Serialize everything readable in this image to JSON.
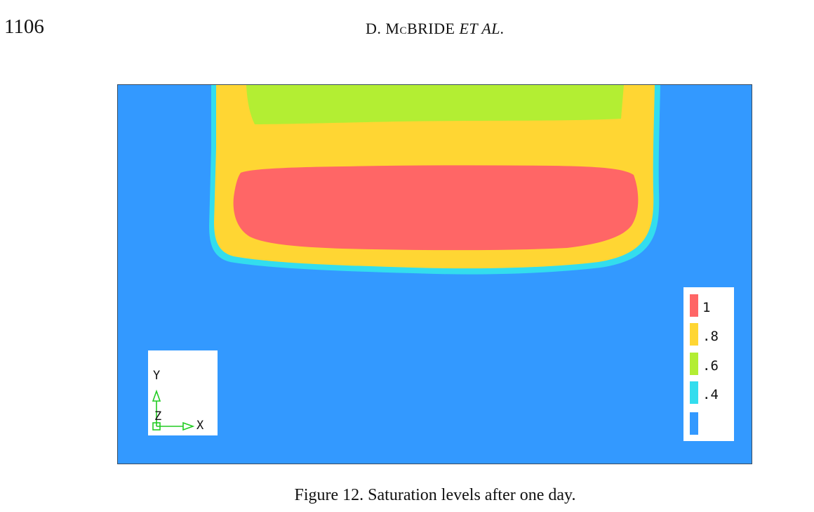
{
  "header": {
    "page_number": "1106",
    "author_prefix": "D. M",
    "author_smallcap": "C",
    "author_name": "BRIDE",
    "author_suffix": "ET AL."
  },
  "figure": {
    "colors": {
      "background_region": "#3399ff",
      "level_04": "#33ddee",
      "level_08": "#ffd633",
      "level_06": "#b3ee33",
      "level_1": "#ff6666"
    },
    "axis_triad": {
      "y_label": "Y",
      "z_label": "Z",
      "x_label": "X",
      "arrow_color": "#22cc22"
    },
    "legend": {
      "items": [
        {
          "label": "1",
          "color": "#ff6666"
        },
        {
          "label": ".8",
          "color": "#ffd633"
        },
        {
          "label": ".6",
          "color": "#b3ee33"
        },
        {
          "label": ".4",
          "color": "#33ddee"
        },
        {
          "label": "",
          "color": "#3399ff"
        }
      ]
    }
  },
  "caption": "Figure 12. Saturation levels after one day."
}
